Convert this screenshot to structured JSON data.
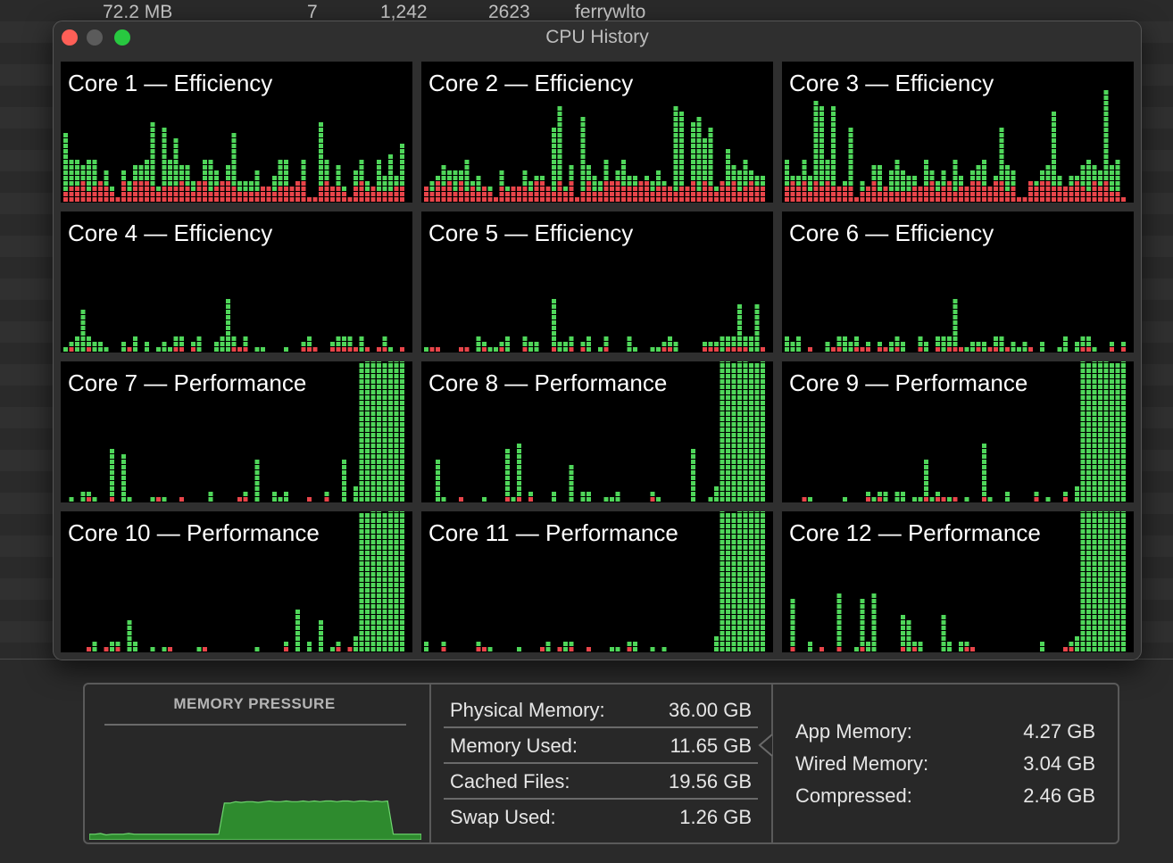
{
  "background_row": {
    "size": "72.2 MB",
    "threads": "7",
    "ports": "1,242",
    "pid": "2623",
    "user": "ferrywlto"
  },
  "window": {
    "title": "CPU History"
  },
  "colors": {
    "user": "#4fd65a",
    "system": "#e8454a",
    "core_bg": "#000000",
    "window_bg": "#2f2f2f",
    "memory_pressure": "#2e8b2e"
  },
  "cores": [
    {
      "label": "Core 1 — Efficiency"
    },
    {
      "label": "Core 2 — Efficiency"
    },
    {
      "label": "Core 3 — Efficiency"
    },
    {
      "label": "Core 4 — Efficiency"
    },
    {
      "label": "Core 5 — Efficiency"
    },
    {
      "label": "Core 6 — Efficiency"
    },
    {
      "label": "Core 7 — Performance"
    },
    {
      "label": "Core 8 — Performance"
    },
    {
      "label": "Core 9 — Performance"
    },
    {
      "label": "Core 10 — Performance"
    },
    {
      "label": "Core 11 — Performance"
    },
    {
      "label": "Core 12 — Performance"
    }
  ],
  "memory": {
    "pressure_title": "MEMORY PRESSURE",
    "pressure_history": [
      0.08,
      0.08,
      0.09,
      0.07,
      0.08,
      0.08,
      0.08,
      0.09,
      0.08,
      0.08,
      0.08,
      0.08,
      0.08,
      0.08,
      0.08,
      0.08,
      0.08,
      0.08,
      0.08,
      0.08,
      0.08,
      0.08,
      0.08,
      0.08,
      0.52,
      0.52,
      0.54,
      0.53,
      0.54,
      0.54,
      0.53,
      0.54,
      0.55,
      0.54,
      0.54,
      0.55,
      0.54,
      0.54,
      0.55,
      0.54,
      0.55,
      0.54,
      0.55,
      0.55,
      0.54,
      0.55,
      0.55,
      0.54,
      0.55,
      0.55,
      0.54,
      0.55,
      0.54,
      0.55,
      0.08,
      0.08,
      0.08,
      0.08,
      0.08,
      0.08
    ],
    "stats": [
      {
        "label": "Physical Memory:",
        "value": "36.00 GB"
      },
      {
        "label": "Memory Used:",
        "value": "11.65 GB"
      },
      {
        "label": "Cached Files:",
        "value": "19.56 GB"
      },
      {
        "label": "Swap Used:",
        "value": "1.26 GB"
      }
    ],
    "breakdown": [
      {
        "label": "App Memory:",
        "value": "4.27 GB"
      },
      {
        "label": "Wired Memory:",
        "value": "3.04 GB"
      },
      {
        "label": "Compressed:",
        "value": "2.46 GB"
      }
    ]
  }
}
